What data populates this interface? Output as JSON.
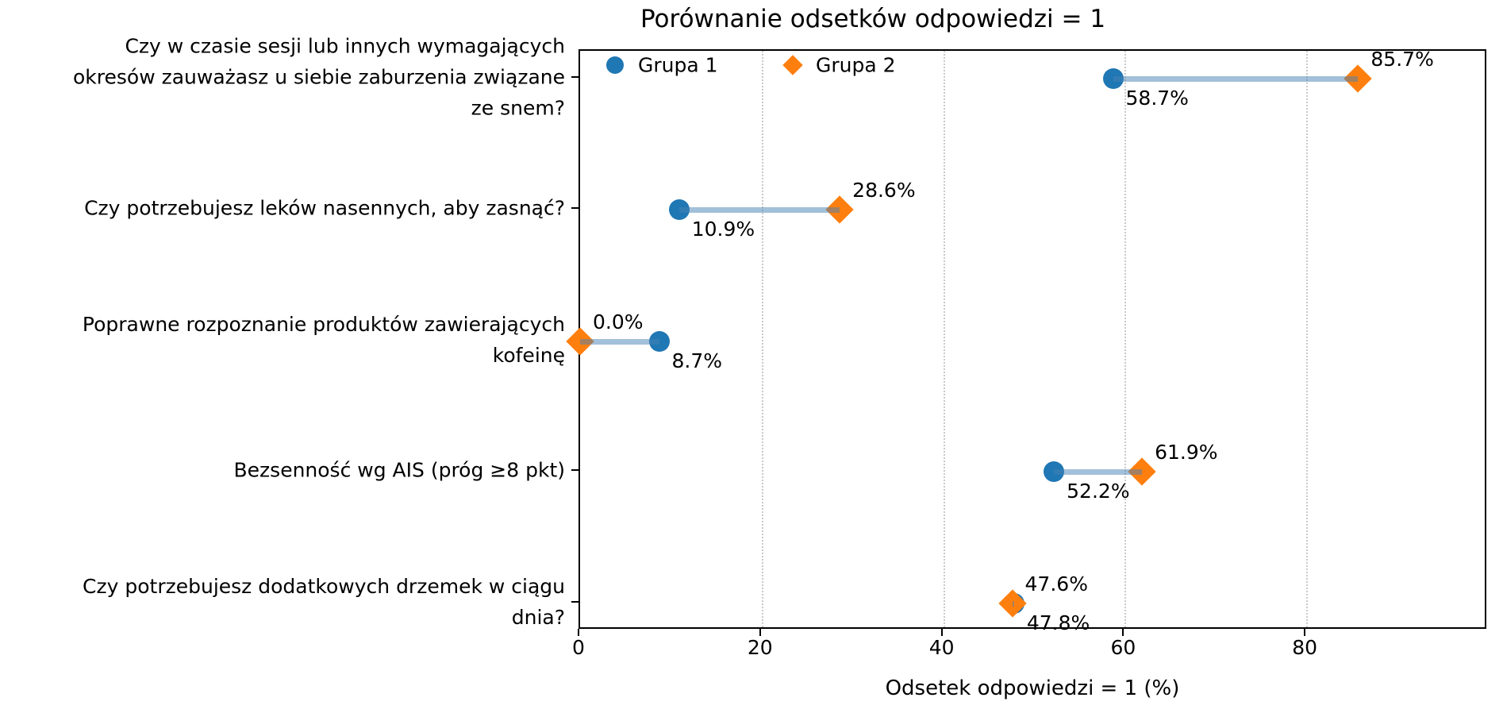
{
  "chart_data": {
    "type": "scatter",
    "subtype": "dumbbell-comparison",
    "title": "Porównanie odsetków odpowiedzi = 1",
    "xlabel": "Odsetek odpowiedzi = 1 (%)",
    "xlim": [
      0,
      100
    ],
    "xticks": [
      0,
      20,
      40,
      60,
      80
    ],
    "grid": "vertical-dotted",
    "legend_position": "upper-left-inside",
    "categories": [
      "Czy w czasie sesji lub innych wymagających okresów zauważasz u siebie zaburzenia związane ze snem?",
      "Czy potrzebujesz leków nasennych, aby zasnąć?",
      "Poprawne rozpoznanie produktów zawierających kofeinę",
      "Bezsenność wg AIS (próg ≥8 pkt)",
      "Czy potrzebujesz dodatkowych drzemek w ciągu dnia?"
    ],
    "category_lines": [
      [
        "Czy w czasie sesji lub innych wymagających",
        "okresów zauważasz u siebie zaburzenia związane",
        "ze snem?"
      ],
      [
        "Czy potrzebujesz leków nasennych, aby zasnąć?"
      ],
      [
        "Poprawne rozpoznanie produktów zawierających",
        "kofeinę"
      ],
      [
        "Bezsenność wg AIS (próg ≥8 pkt)"
      ],
      [
        "Czy potrzebujesz dodatkowych drzemek w ciągu",
        "dnia?"
      ]
    ],
    "series": [
      {
        "name": "Grupa 1",
        "marker": "circle",
        "color": "#1f77b4",
        "values": [
          58.7,
          10.9,
          8.7,
          52.2,
          47.8
        ],
        "labels": [
          "58.7%",
          "10.9%",
          "8.7%",
          "52.2%",
          "47.8%"
        ],
        "label_placement": "below-right"
      },
      {
        "name": "Grupa 2",
        "marker": "diamond",
        "color": "#ff7f0e",
        "values": [
          85.7,
          28.6,
          0.0,
          61.9,
          47.6
        ],
        "labels": [
          "85.7%",
          "28.6%",
          "0.0%",
          "61.9%",
          "47.6%"
        ],
        "label_placement": "above-right"
      }
    ],
    "connector_color": "rgba(70,130,180,0.5)",
    "gridline_color": "#c9c9c9",
    "spine_color": "#000000"
  },
  "legend": {
    "items": [
      {
        "label": "Grupa 1",
        "marker": "circle-icon",
        "color": "#1f77b4"
      },
      {
        "label": "Grupa 2",
        "marker": "diamond-icon",
        "color": "#ff7f0e"
      }
    ]
  }
}
